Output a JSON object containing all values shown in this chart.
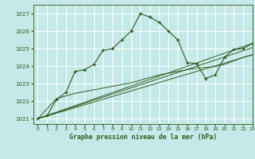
{
  "background_color": "#c5e8e8",
  "grid_color": "#ffffff",
  "line_color": "#2d5a1b",
  "title": "Graphe pression niveau de la mer (hPa)",
  "xlim": [
    -0.5,
    23
  ],
  "ylim": [
    1020.7,
    1027.5
  ],
  "yticks": [
    1021,
    1022,
    1023,
    1024,
    1025,
    1026,
    1027
  ],
  "xticks": [
    0,
    1,
    2,
    3,
    4,
    5,
    6,
    7,
    8,
    9,
    10,
    11,
    12,
    13,
    14,
    15,
    16,
    17,
    18,
    19,
    20,
    21,
    22,
    23
  ],
  "main_line": {
    "x": [
      0,
      1,
      2,
      3,
      4,
      5,
      6,
      7,
      8,
      9,
      10,
      11,
      12,
      13,
      14,
      15,
      16,
      17,
      18,
      19,
      20,
      21,
      22,
      23
    ],
    "y": [
      1021.0,
      1021.2,
      1022.1,
      1022.5,
      1023.7,
      1023.8,
      1024.1,
      1024.9,
      1025.0,
      1025.5,
      1026.0,
      1027.0,
      1026.8,
      1026.5,
      1026.0,
      1025.5,
      1024.2,
      1024.15,
      1023.3,
      1023.5,
      1024.5,
      1024.95,
      1025.0,
      1025.3
    ]
  },
  "fan_line1": {
    "x": [
      0,
      2,
      3,
      4,
      5,
      6,
      7,
      8,
      9,
      10,
      11,
      12,
      13,
      14,
      15,
      16,
      17,
      18,
      19,
      20,
      21,
      22,
      23
    ],
    "y": [
      1021.0,
      1022.15,
      1022.3,
      1022.45,
      1022.55,
      1022.65,
      1022.75,
      1022.85,
      1022.95,
      1023.05,
      1023.2,
      1023.35,
      1023.5,
      1023.6,
      1023.7,
      1023.8,
      1023.88,
      1023.93,
      1023.98,
      1024.1,
      1024.3,
      1024.5,
      1024.65
    ]
  },
  "fan_line2": {
    "x": [
      0,
      23
    ],
    "y": [
      1021.0,
      1025.3
    ]
  },
  "fan_line3": {
    "x": [
      0,
      23
    ],
    "y": [
      1021.0,
      1025.05
    ]
  },
  "fan_line4": {
    "x": [
      0,
      23
    ],
    "y": [
      1021.0,
      1024.65
    ]
  }
}
